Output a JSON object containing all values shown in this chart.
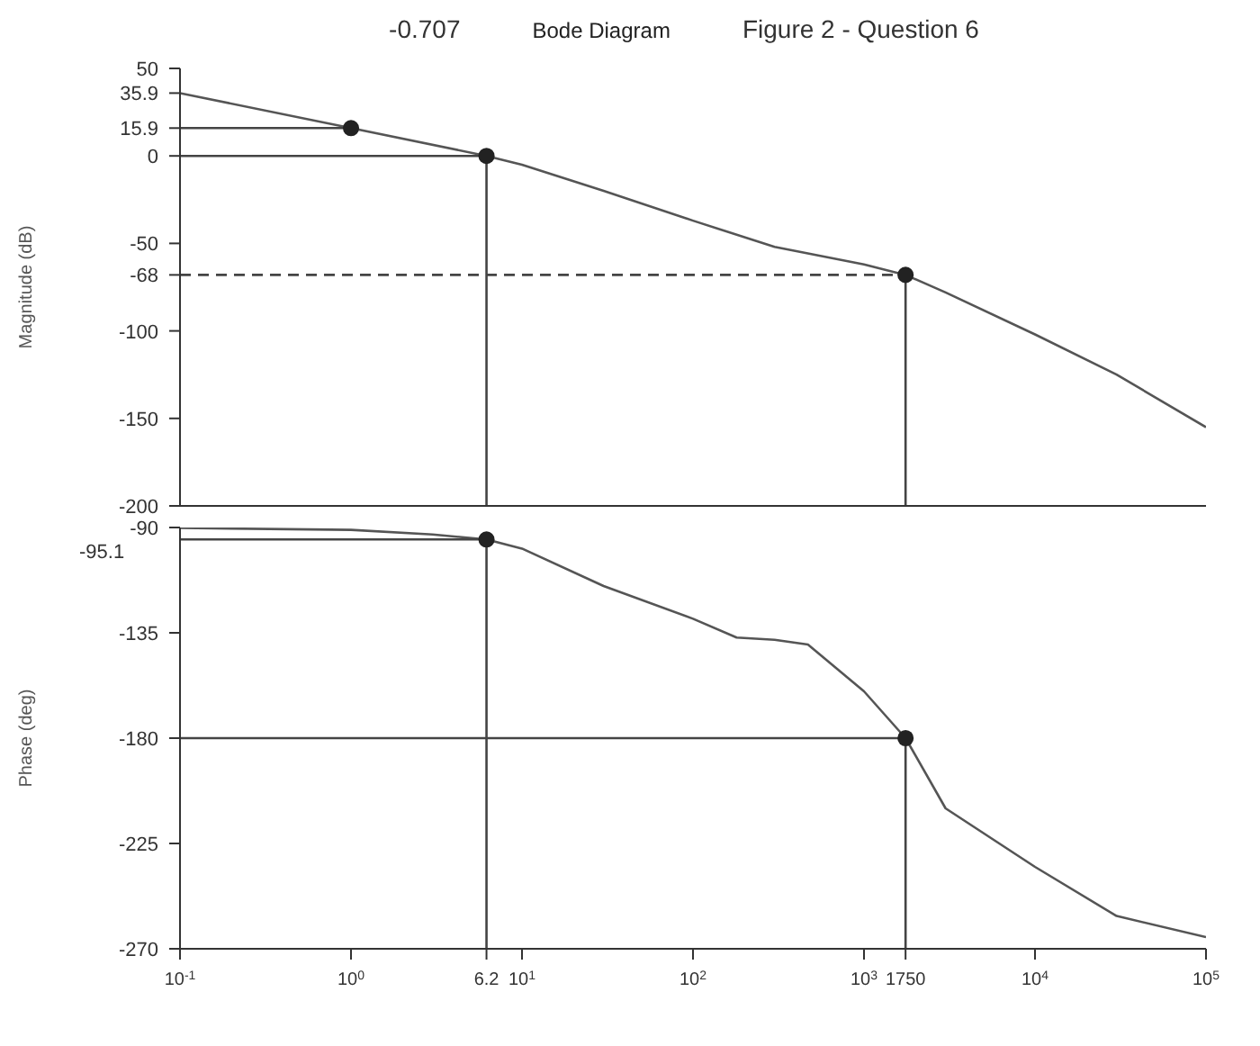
{
  "chart_data": [
    {
      "type": "line",
      "title": "Bode Diagram",
      "annotations": [
        "-0.707",
        "Figure 2 - Question 6"
      ],
      "ylabel": "Magnitude (dB)",
      "log": "x",
      "tick_labels": "y",
      "xlim": [
        0.1,
        100000
      ],
      "xticks": [
        {
          "value": 0.1,
          "label": null
        },
        {
          "value": 1,
          "label": null
        },
        {
          "value": 10,
          "label": null
        },
        {
          "value": 100,
          "label": null
        },
        {
          "value": 1000,
          "label": null
        },
        {
          "value": 10000,
          "label": null
        },
        {
          "value": 100000,
          "label": null
        }
      ],
      "ylim": [
        -200,
        50
      ],
      "yticks": [
        50,
        0,
        -50,
        -100,
        -150,
        -200,
        35.9,
        15.9,
        -68
      ],
      "series": [
        {
          "color": "#555555",
          "x": [
            0.1,
            1,
            6.2,
            10,
            30,
            100,
            300,
            1000,
            1750,
            3000,
            10000,
            30000,
            100000
          ],
          "values": [
            35.9,
            15.9,
            0,
            -5,
            -20,
            -37,
            -52,
            -62,
            -68,
            -78,
            -102,
            -125,
            -155
          ]
        },
        {
          "type": "line",
          "color": "#444444",
          "line_style": "solid",
          "x": [
            0.1,
            1
          ],
          "values": [
            15.9,
            15.9
          ]
        },
        {
          "type": "line",
          "color": "#444444",
          "line_style": "solid",
          "x": [
            0.1,
            6.2,
            6.2
          ],
          "values": [
            0,
            0,
            -200
          ]
        },
        {
          "type": "line",
          "color": "#444444",
          "line_style": "dashed",
          "x": [
            0.1,
            1750
          ],
          "values": [
            -68,
            -68
          ]
        },
        {
          "type": "line",
          "color": "#444444",
          "line_style": "solid",
          "x": [
            1750,
            1750
          ],
          "values": [
            -68,
            -200
          ]
        },
        {
          "type": "scatter",
          "color": "#222222",
          "x": [
            1,
            6.2,
            1750
          ],
          "values": [
            15.9,
            0,
            -68
          ]
        }
      ]
    },
    {
      "type": "line",
      "ylabel": "Phase (deg)",
      "log": "x",
      "xlim": [
        0.1,
        100000
      ],
      "xticks": [
        {
          "value": 0.1,
          "label": "10$^{-1}$"
        },
        {
          "value": 1,
          "label": "10$^{0}$"
        },
        {
          "value": 10,
          "label": "10$^{1}$"
        },
        {
          "value": 100,
          "label": "10$^{2}$"
        },
        {
          "value": 1000,
          "label": "10$^{3}$"
        },
        {
          "value": 10000,
          "label": "10$^{4}$"
        },
        {
          "value": 100000,
          "label": "10$^{5}$"
        },
        6.2,
        1750
      ],
      "ylim": [
        -270,
        -90
      ],
      "yticks": [
        -90,
        -135,
        -180,
        -225,
        -270
      ],
      "annotations": [
        "-95.1"
      ],
      "series": [
        {
          "color": "#555555",
          "x": [
            0.1,
            1,
            3,
            6.2,
            10,
            30,
            100,
            180,
            300,
            470,
            1000,
            1750,
            3000,
            10000,
            30000,
            100000
          ],
          "values": [
            -90.2,
            -91,
            -93,
            -95.1,
            -99,
            -115,
            -129,
            -137,
            -138,
            -140,
            -160,
            -180,
            -210,
            -235,
            -256,
            -265
          ]
        },
        {
          "type": "line",
          "color": "#444444",
          "line_style": "solid",
          "x": [
            0.1,
            6.2,
            6.2
          ],
          "values": [
            -95.1,
            -95.1,
            -270
          ]
        },
        {
          "type": "line",
          "color": "#444444",
          "line_style": "solid",
          "x": [
            0.1,
            1750,
            1750
          ],
          "values": [
            -180,
            -180,
            -270
          ]
        },
        {
          "type": "scatter",
          "color": "#222222",
          "x": [
            6.2,
            1750
          ],
          "values": [
            -95.1,
            -180
          ]
        }
      ]
    }
  ]
}
